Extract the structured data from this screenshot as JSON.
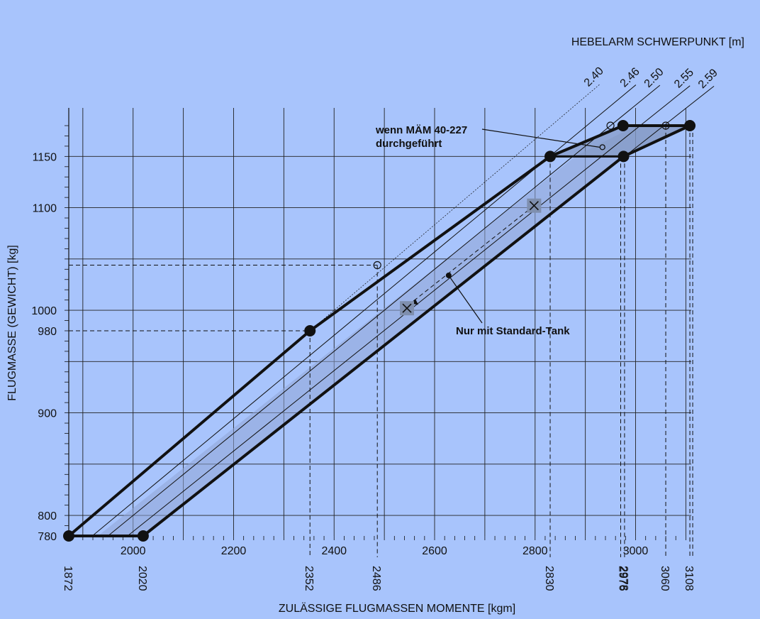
{
  "chart_data": {
    "type": "line",
    "title": "",
    "xlabel": "ZULÄSSIGE FLUGMASSEN MOMENTE [kgm]",
    "ylabel": "FLUGMASSE (GEWICHT) [kg]",
    "arm_label": "HEBELARM SCHWERPUNKT [m]",
    "xlim": [
      1872,
      3108
    ],
    "ylim": [
      780,
      1180
    ],
    "x_ticks": [
      "2000",
      "2200",
      "2400",
      "2600",
      "2800",
      "3000"
    ],
    "x_marks": [
      "1872",
      "2020",
      "2352",
      "2486",
      "2830",
      "2976",
      "2978",
      "3060",
      "3108"
    ],
    "y_ticks": [
      "780",
      "800",
      "900",
      "980",
      "1000",
      "1100",
      "1150"
    ],
    "arms": [
      "2.40",
      "2.46",
      "2.50",
      "2.55",
      "2.59"
    ],
    "envelope": [
      [
        1872,
        780
      ],
      [
        2352,
        980
      ],
      [
        2830,
        1150
      ],
      [
        2975,
        1180
      ],
      [
        3108,
        1180
      ],
      [
        2976,
        1150
      ],
      [
        2020,
        780
      ]
    ],
    "annotations": {
      "mam": "wenn MÄM 40-227\ndurchgeführt",
      "standard_tank": "Nur mit Standard-Tank"
    },
    "colors": {
      "background": "#a8c4fc",
      "line": "#111111",
      "band": "#8fa6d6"
    }
  }
}
